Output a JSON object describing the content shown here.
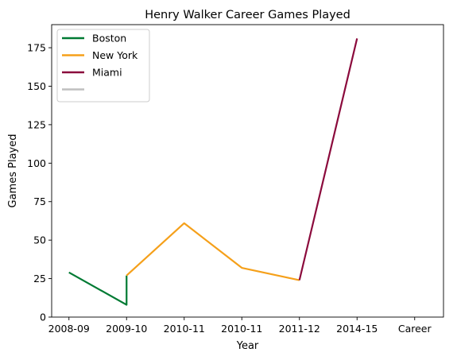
{
  "chart_data": {
    "type": "line",
    "title": "Henry Walker  Career Games Played",
    "xlabel": "Year",
    "ylabel": "Games Played",
    "x_ticks": [
      "2008-09",
      "2009-10",
      "2010-11",
      "2010-11",
      "2011-12",
      "2014-15",
      "Career"
    ],
    "y_ticks": [
      0,
      25,
      50,
      75,
      100,
      125,
      150,
      175
    ],
    "xlim": [
      -0.3,
      6.5
    ],
    "ylim": [
      0,
      190
    ],
    "grid": false,
    "legend_position": "top-left",
    "series": [
      {
        "name": "Boston",
        "color": "#007a33",
        "points": [
          [
            0,
            29
          ],
          [
            1,
            8
          ],
          [
            1,
            27
          ]
        ]
      },
      {
        "name": "New York",
        "color": "#f5a01a",
        "points": [
          [
            1,
            27
          ],
          [
            2,
            61
          ],
          [
            3,
            32
          ],
          [
            4,
            24
          ]
        ]
      },
      {
        "name": "Miami",
        "color": "#8b0a3c",
        "points": [
          [
            4,
            24
          ],
          [
            5,
            181
          ]
        ]
      },
      {
        "name": "",
        "color": "#bfbfbf",
        "points": []
      }
    ]
  }
}
